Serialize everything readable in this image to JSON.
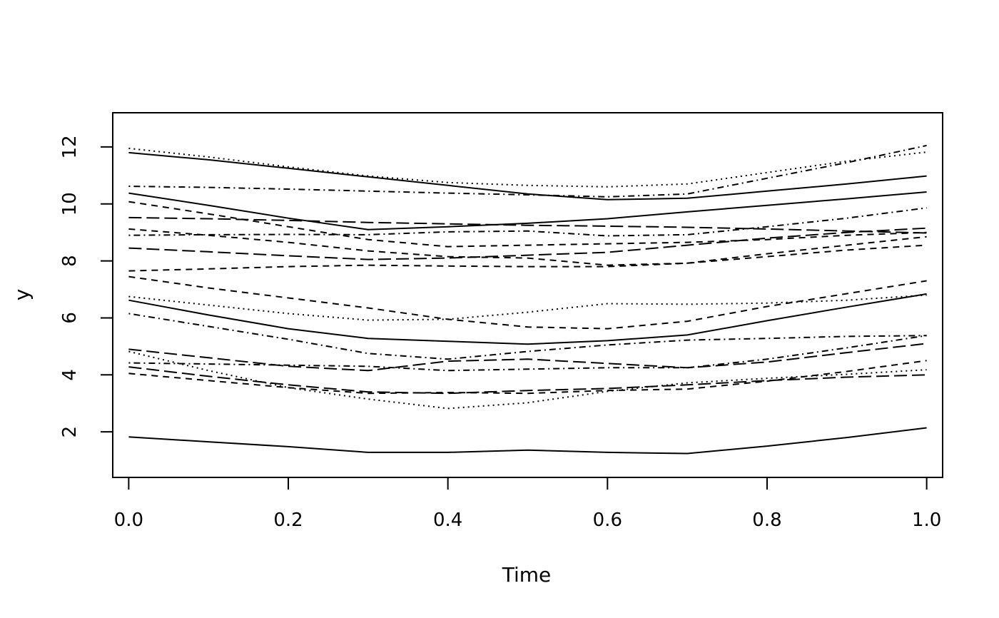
{
  "chart_data": {
    "type": "line",
    "title": "",
    "xlabel": "Time",
    "ylabel": "y",
    "xlim": [
      -0.02,
      1.02
    ],
    "ylim": [
      0.4,
      13.2
    ],
    "x_ticks": [
      "0.0",
      "0.2",
      "0.4",
      "0.6",
      "0.8",
      "1.0"
    ],
    "y_ticks": [
      "2",
      "4",
      "6",
      "8",
      "10",
      "12"
    ],
    "grid": false,
    "legend": "none",
    "line_color": "#000000",
    "x": [
      0.0,
      0.1,
      0.2,
      0.3,
      0.4,
      0.5,
      0.6,
      0.7,
      0.8,
      0.9,
      1.0
    ],
    "series": [
      {
        "style": "solid",
        "values": [
          11.8,
          11.55,
          11.25,
          10.95,
          10.65,
          10.35,
          10.15,
          10.2,
          10.45,
          10.7,
          10.98
        ]
      },
      {
        "style": "dotted",
        "values": [
          11.95,
          11.65,
          11.3,
          10.98,
          10.75,
          10.65,
          10.6,
          10.7,
          11.1,
          11.5,
          11.82
        ]
      },
      {
        "style": "dashdot",
        "values": [
          10.62,
          10.58,
          10.52,
          10.45,
          10.38,
          10.32,
          10.25,
          10.35,
          10.9,
          11.45,
          12.05
        ]
      },
      {
        "style": "solid",
        "values": [
          10.38,
          9.95,
          9.5,
          9.1,
          9.2,
          9.32,
          9.48,
          9.72,
          9.95,
          10.18,
          10.42
        ]
      },
      {
        "style": "dashed",
        "values": [
          10.08,
          9.65,
          9.2,
          8.75,
          8.5,
          8.55,
          8.6,
          8.65,
          8.75,
          8.9,
          9.0
        ]
      },
      {
        "style": "longdash",
        "values": [
          9.52,
          9.48,
          9.42,
          9.35,
          9.3,
          9.25,
          9.22,
          9.18,
          9.12,
          9.05,
          8.98
        ]
      },
      {
        "style": "dashdot",
        "values": [
          8.9,
          8.92,
          8.93,
          8.92,
          9.02,
          9.05,
          8.88,
          8.92,
          9.2,
          9.5,
          9.86
        ]
      },
      {
        "style": "dashed",
        "values": [
          9.12,
          8.9,
          8.65,
          8.35,
          8.15,
          8.1,
          7.85,
          7.92,
          8.25,
          8.55,
          8.85
        ]
      },
      {
        "style": "longdash",
        "values": [
          8.45,
          8.32,
          8.18,
          8.05,
          8.1,
          8.2,
          8.3,
          8.55,
          8.8,
          9.0,
          9.15
        ]
      },
      {
        "style": "dashed",
        "values": [
          7.65,
          7.72,
          7.8,
          7.85,
          7.82,
          7.8,
          7.8,
          7.92,
          8.15,
          8.38,
          8.55
        ]
      },
      {
        "style": "dashed",
        "values": [
          7.45,
          7.05,
          6.7,
          6.35,
          5.95,
          5.68,
          5.62,
          5.88,
          6.4,
          6.85,
          7.3
        ]
      },
      {
        "style": "dotted",
        "values": [
          6.75,
          6.45,
          6.15,
          5.92,
          5.95,
          6.2,
          6.5,
          6.48,
          6.52,
          6.62,
          6.8
        ]
      },
      {
        "style": "solid",
        "values": [
          6.62,
          6.1,
          5.62,
          5.28,
          5.18,
          5.08,
          5.2,
          5.4,
          5.9,
          6.38,
          6.84
        ]
      },
      {
        "style": "dashdot",
        "values": [
          6.15,
          5.7,
          5.25,
          4.75,
          4.55,
          4.82,
          5.05,
          5.22,
          5.28,
          5.35,
          5.38
        ]
      },
      {
        "style": "longdash",
        "values": [
          4.9,
          4.6,
          4.3,
          4.15,
          4.48,
          4.55,
          4.4,
          4.25,
          4.45,
          4.78,
          5.1
        ]
      },
      {
        "style": "dashdot",
        "values": [
          4.42,
          4.38,
          4.34,
          4.3,
          4.15,
          4.2,
          4.25,
          4.25,
          4.55,
          4.95,
          5.38
        ]
      },
      {
        "style": "longdash",
        "values": [
          4.28,
          3.95,
          3.65,
          3.4,
          3.35,
          3.45,
          3.52,
          3.65,
          3.8,
          3.92,
          4.0
        ]
      },
      {
        "style": "dotted",
        "values": [
          4.82,
          4.15,
          3.55,
          3.15,
          2.82,
          3.02,
          3.42,
          3.72,
          3.88,
          4.02,
          4.18
        ]
      },
      {
        "style": "dashed",
        "values": [
          4.05,
          3.8,
          3.55,
          3.35,
          3.38,
          3.35,
          3.45,
          3.5,
          3.78,
          4.12,
          4.5
        ]
      },
      {
        "style": "solid",
        "values": [
          1.82,
          1.65,
          1.48,
          1.28,
          1.28,
          1.36,
          1.28,
          1.24,
          1.5,
          1.8,
          2.14
        ]
      }
    ]
  }
}
